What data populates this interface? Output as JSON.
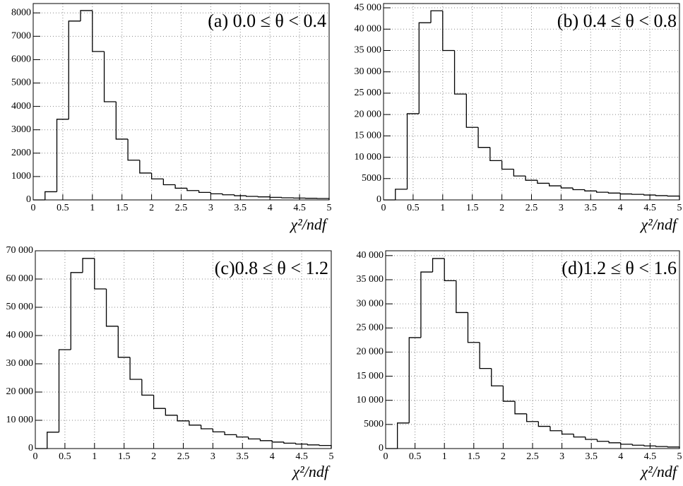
{
  "chart_data": [
    {
      "type": "histogram",
      "title": "(a) 0.0 ≤ θ < 0.4",
      "x_label": "χ²/ndf",
      "bins": [
        0,
        0.2,
        0.4,
        0.6,
        0.8,
        1,
        1.2,
        1.4,
        1.6,
        1.8,
        2,
        2.2,
        2.4,
        2.6,
        2.8,
        3,
        3.2,
        3.4,
        3.6,
        3.8,
        4,
        4.2,
        4.4,
        4.6,
        4.8,
        5
      ],
      "values": [
        0,
        350,
        3450,
        7650,
        8100,
        6350,
        4200,
        2600,
        1700,
        1150,
        900,
        650,
        500,
        400,
        320,
        260,
        220,
        180,
        150,
        130,
        110,
        90,
        80,
        70,
        60
      ],
      "color": "#000000",
      "xlim": [
        0,
        5
      ],
      "xticks": [
        0,
        0.5,
        1,
        1.5,
        2,
        2.5,
        3,
        3.5,
        4,
        4.5,
        5
      ],
      "ylim": [
        0,
        8400
      ],
      "yticks": [
        0,
        1000,
        2000,
        3000,
        4000,
        5000,
        6000,
        7000,
        8000
      ],
      "grid": true
    },
    {
      "type": "histogram",
      "title": "(b) 0.4 ≤ θ < 0.8",
      "x_label": "χ²/ndf",
      "bins": [
        0,
        0.2,
        0.4,
        0.6,
        0.8,
        1,
        1.2,
        1.4,
        1.6,
        1.8,
        2,
        2.2,
        2.4,
        2.6,
        2.8,
        3,
        3.2,
        3.4,
        3.6,
        3.8,
        4,
        4.2,
        4.4,
        4.6,
        4.8,
        5
      ],
      "values": [
        0,
        2500,
        20200,
        41500,
        44300,
        35000,
        24800,
        17000,
        12300,
        9200,
        7200,
        5600,
        4600,
        3900,
        3300,
        2800,
        2400,
        2100,
        1800,
        1600,
        1400,
        1300,
        1150,
        1000,
        900
      ],
      "color": "#000000",
      "xlim": [
        0,
        5
      ],
      "xticks": [
        0,
        0.5,
        1,
        1.5,
        2,
        2.5,
        3,
        3.5,
        4,
        4.5,
        5
      ],
      "ylim": [
        0,
        46000
      ],
      "yticks": [
        0,
        5000,
        {
          "value": 10000,
          "label": "10 000"
        },
        {
          "value": 15000,
          "label": "15 000"
        },
        {
          "value": 20000,
          "label": "20 000"
        },
        {
          "value": 25000,
          "label": "25 000"
        },
        {
          "value": 30000,
          "label": "30 000"
        },
        {
          "value": 35000,
          "label": "35 000"
        },
        {
          "value": 40000,
          "label": "40 000"
        },
        {
          "value": 45000,
          "label": "45 000"
        }
      ],
      "grid": true
    },
    {
      "type": "histogram",
      "title": "(c)0.8 ≤ θ < 1.2",
      "x_label": "χ²/ndf",
      "bins": [
        0,
        0.2,
        0.4,
        0.6,
        0.8,
        1,
        1.2,
        1.4,
        1.6,
        1.8,
        2,
        2.2,
        2.4,
        2.6,
        2.8,
        3,
        3.2,
        3.4,
        3.6,
        3.8,
        4,
        4.2,
        4.4,
        4.6,
        4.8,
        5
      ],
      "values": [
        0,
        5800,
        35000,
        62300,
        67300,
        56500,
        43300,
        32300,
        24500,
        18900,
        14200,
        11800,
        9800,
        8300,
        7000,
        5900,
        4900,
        4100,
        3400,
        2800,
        2300,
        1900,
        1600,
        1300,
        1100
      ],
      "color": "#000000",
      "xlim": [
        0,
        5
      ],
      "xticks": [
        0,
        0.5,
        1,
        1.5,
        2,
        2.5,
        3,
        3.5,
        4,
        4.5,
        5
      ],
      "ylim": [
        0,
        70000
      ],
      "yticks": [
        0,
        {
          "value": 10000,
          "label": "10 000"
        },
        {
          "value": 20000,
          "label": "20 000"
        },
        {
          "value": 30000,
          "label": "30 000"
        },
        {
          "value": 40000,
          "label": "40 000"
        },
        {
          "value": 50000,
          "label": "50 000"
        },
        {
          "value": 60000,
          "label": "60 000"
        },
        {
          "value": 70000,
          "label": "70 000"
        }
      ],
      "grid": true
    },
    {
      "type": "histogram",
      "title": "(d)1.2 ≤ θ < 1.6",
      "x_label": "χ²/ndf",
      "bins": [
        0,
        0.2,
        0.4,
        0.6,
        0.8,
        1,
        1.2,
        1.4,
        1.6,
        1.8,
        2,
        2.2,
        2.4,
        2.6,
        2.8,
        3,
        3.2,
        3.4,
        3.6,
        3.8,
        4,
        4.2,
        4.4,
        4.6,
        4.8,
        5
      ],
      "values": [
        0,
        5300,
        23000,
        36600,
        39400,
        34800,
        28200,
        22000,
        16600,
        13000,
        9800,
        7200,
        5600,
        4600,
        3700,
        3000,
        2400,
        1900,
        1500,
        1200,
        900,
        700,
        550,
        420,
        320
      ],
      "color": "#000000",
      "xlim": [
        0,
        5
      ],
      "xticks": [
        0,
        0.5,
        1,
        1.5,
        2,
        2.5,
        3,
        3.5,
        4,
        4.5,
        5
      ],
      "ylim": [
        0,
        41000
      ],
      "yticks": [
        0,
        5000,
        {
          "value": 10000,
          "label": "10 000"
        },
        {
          "value": 15000,
          "label": "15 000"
        },
        {
          "value": 20000,
          "label": "20 000"
        },
        {
          "value": 25000,
          "label": "25 000"
        },
        {
          "value": 30000,
          "label": "30 000"
        },
        {
          "value": 35000,
          "label": "35 000"
        },
        {
          "value": 40000,
          "label": "40 000"
        }
      ],
      "grid": true
    }
  ]
}
